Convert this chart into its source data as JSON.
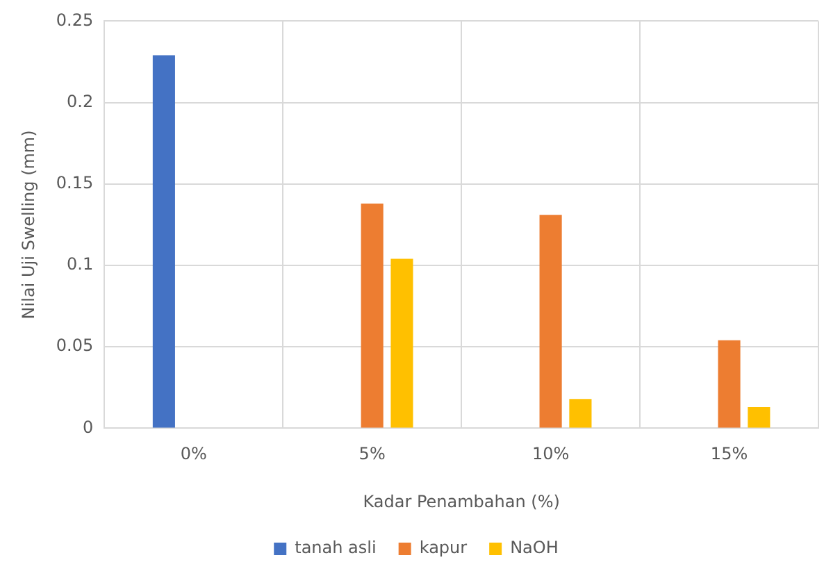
{
  "chart_data": {
    "type": "bar",
    "xlabel": "Kadar Penambahan (%)",
    "ylabel": "Nilai Uji Swelling (mm)",
    "categories": [
      "0%",
      "5%",
      "10%",
      "15%"
    ],
    "series": [
      {
        "name": "tanah asli",
        "color": "#4472c4",
        "values": [
          0.229,
          null,
          null,
          null
        ]
      },
      {
        "name": "kapur",
        "color": "#ed7d31",
        "values": [
          null,
          0.138,
          0.131,
          0.054
        ]
      },
      {
        "name": "NaOH",
        "color": "#ffc000",
        "values": [
          null,
          0.104,
          0.018,
          0.013
        ]
      }
    ],
    "ylim": [
      0,
      0.25
    ],
    "yticks": [
      0,
      0.05,
      0.1,
      0.15,
      0.2,
      0.25
    ],
    "grid": true,
    "legend": "bottom"
  }
}
